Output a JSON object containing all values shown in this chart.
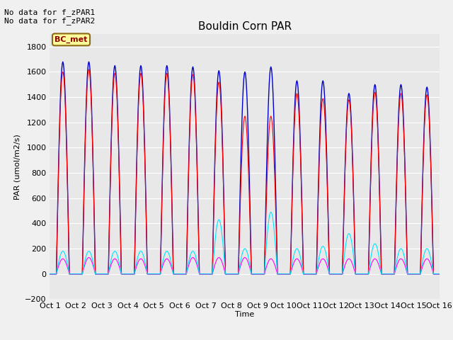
{
  "title": "Bouldin Corn PAR",
  "ylabel": "PAR (umol/m2/s)",
  "xlabel": "Time",
  "ylim": [
    -200,
    1900
  ],
  "yticks": [
    -200,
    0,
    200,
    400,
    600,
    800,
    1000,
    1200,
    1400,
    1600,
    1800
  ],
  "xtick_labels": [
    "Oct 1",
    "Oct 2",
    "Oct 3",
    "Oct 4",
    "Oct 5",
    "Oct 6",
    "Oct 7",
    "Oct 8",
    "Oct 9",
    "Oct 10",
    "Oct 11",
    "Oct 12",
    "Oct 13",
    "Oct 14",
    "Oct 15",
    "Oct 16"
  ],
  "n_days": 15,
  "points_per_day": 48,
  "colors": {
    "PAR_in": "#ff0000",
    "PAR_out": "#ff00ff",
    "totPAR": "#0000cc",
    "difPAR": "#00e5ff"
  },
  "annotation_text": "No data for f_zPAR1\nNo data for f_zPAR2",
  "box_label": "BC_met",
  "box_color": "#ffff99",
  "box_edge_color": "#8B6914",
  "box_text_color": "#8B0000",
  "background_color": "#e8e8e8",
  "plot_bg_color": "#e8e8e8",
  "fig_bg_color": "#f0f0f0",
  "grid_color": "#ffffff",
  "title_fontsize": 11,
  "label_fontsize": 8,
  "tick_fontsize": 8,
  "peak_totPAR": [
    1680,
    1680,
    1650,
    1650,
    1650,
    1640,
    1610,
    1600,
    1640,
    1530,
    1530,
    1430,
    1500,
    1500,
    1480
  ],
  "peak_PAR_in": [
    1600,
    1620,
    1590,
    1590,
    1590,
    1580,
    1520,
    1250,
    1250,
    1430,
    1390,
    1380,
    1440,
    1430,
    1420
  ],
  "peak_PAR_out": [
    120,
    130,
    120,
    120,
    120,
    130,
    130,
    130,
    120,
    120,
    120,
    120,
    120,
    120,
    120
  ],
  "peak_difPAR": [
    180,
    180,
    180,
    180,
    180,
    180,
    430,
    200,
    490,
    200,
    220,
    320,
    240,
    200,
    200
  ]
}
